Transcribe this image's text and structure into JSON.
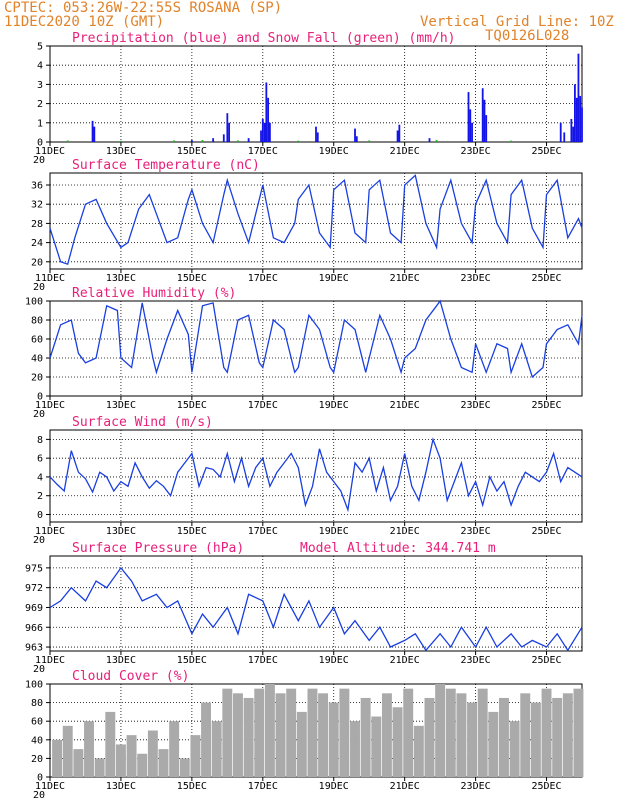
{
  "header": {
    "line1": "CPTEC:  053:26W-22:55S  ROSANA (SP)",
    "line2_left": "11DEC2020 10Z (GMT)",
    "line2_right": "Vertical Grid Line: 10Z",
    "line3_right": "TQ0126L028"
  },
  "x_dates": [
    "11DEC",
    "13DEC",
    "15DEC",
    "17DEC",
    "19DEC",
    "21DEC",
    "23DEC",
    "25DEC"
  ],
  "x_date_days": [
    0,
    2,
    4,
    6,
    8,
    10,
    12,
    14
  ],
  "x_range_days": [
    0,
    15
  ],
  "x_fragment": "20",
  "colors": {
    "precip": "#1414e6",
    "snow": "#18b418",
    "line": "#1a3fe0",
    "title": "#e8207a",
    "header": "#e0832a",
    "cloud": "#aaaaaa"
  },
  "chart_data": [
    {
      "type": "bar",
      "title": "Precipitation (blue) and Snow Fall (green) (mm/h)",
      "ylim": [
        0,
        5
      ],
      "yticks": [
        "0",
        "1",
        "2",
        "3",
        "4",
        "5"
      ],
      "series": [
        {
          "name": "Precipitation",
          "points": [
            [
              1.2,
              1.1
            ],
            [
              1.25,
              0.8
            ],
            [
              4.0,
              0.1
            ],
            [
              4.6,
              0.2
            ],
            [
              4.9,
              0.4
            ],
            [
              5.0,
              1.5
            ],
            [
              5.05,
              1.0
            ],
            [
              5.6,
              0.2
            ],
            [
              5.95,
              0.6
            ],
            [
              6.0,
              1.2
            ],
            [
              6.05,
              1.0
            ],
            [
              6.1,
              3.1
            ],
            [
              6.15,
              2.3
            ],
            [
              6.2,
              1.0
            ],
            [
              7.5,
              0.8
            ],
            [
              7.55,
              0.5
            ],
            [
              8.6,
              0.7
            ],
            [
              8.65,
              0.3
            ],
            [
              9.8,
              0.6
            ],
            [
              9.85,
              0.9
            ],
            [
              10.7,
              0.2
            ],
            [
              11.8,
              2.6
            ],
            [
              11.85,
              1.7
            ],
            [
              11.9,
              1.0
            ],
            [
              12.2,
              2.8
            ],
            [
              12.25,
              2.2
            ],
            [
              12.3,
              1.4
            ],
            [
              14.4,
              1.0
            ],
            [
              14.5,
              0.5
            ],
            [
              14.7,
              1.2
            ],
            [
              14.75,
              0.8
            ],
            [
              14.8,
              3.0
            ],
            [
              14.85,
              2.3
            ],
            [
              14.9,
              4.6
            ],
            [
              14.95,
              2.4
            ],
            [
              15.0,
              1.8
            ]
          ]
        },
        {
          "name": "Snow Fall",
          "points": [
            [
              0.5,
              0.08
            ],
            [
              2.0,
              0.06
            ],
            [
              3.5,
              0.08
            ],
            [
              4.3,
              0.1
            ],
            [
              5.3,
              0.08
            ],
            [
              7.0,
              0.07
            ],
            [
              9.0,
              0.08
            ],
            [
              10.9,
              0.1
            ],
            [
              13.0,
              0.07
            ]
          ]
        }
      ]
    },
    {
      "type": "line",
      "title": "Surface Temperature (nC)",
      "ylim": [
        18.5,
        38.5
      ],
      "yticks": [
        "20",
        "24",
        "28",
        "32",
        "36"
      ],
      "ytick_values": [
        20,
        24,
        28,
        32,
        36
      ],
      "x": [
        0,
        0.3,
        0.5,
        0.7,
        1.0,
        1.3,
        1.6,
        2.0,
        2.2,
        2.5,
        2.8,
        3.0,
        3.3,
        3.6,
        3.9,
        4.0,
        4.3,
        4.6,
        4.9,
        5.0,
        5.3,
        5.6,
        5.9,
        6.0,
        6.3,
        6.6,
        6.9,
        7.0,
        7.3,
        7.6,
        7.9,
        8.0,
        8.3,
        8.6,
        8.9,
        9.0,
        9.3,
        9.6,
        9.9,
        10.0,
        10.3,
        10.6,
        10.9,
        11.0,
        11.3,
        11.6,
        11.9,
        12.0,
        12.3,
        12.6,
        12.9,
        13.0,
        13.3,
        13.6,
        13.9,
        14.0,
        14.3,
        14.6,
        14.9,
        15.0
      ],
      "values": [
        27,
        20,
        19.5,
        25,
        32,
        33,
        28,
        23,
        24,
        31,
        34,
        30,
        24,
        25,
        33,
        35,
        28,
        24,
        34,
        37,
        30,
        24,
        33,
        36,
        25,
        24,
        28,
        33,
        36,
        26,
        23,
        35,
        37,
        26,
        24,
        35,
        37,
        26,
        24,
        36,
        38,
        28,
        23,
        31,
        37,
        28,
        24,
        32,
        37,
        28,
        24,
        34,
        37,
        27,
        23,
        34,
        37,
        25,
        29,
        27
      ]
    },
    {
      "type": "line",
      "title": "Relative Humidity (%)",
      "ylim": [
        0,
        100
      ],
      "yticks": [
        "0",
        "20",
        "40",
        "60",
        "80",
        "100"
      ],
      "ytick_values": [
        0,
        20,
        40,
        60,
        80,
        100
      ],
      "x": [
        0,
        0.3,
        0.6,
        0.8,
        1.0,
        1.3,
        1.6,
        1.9,
        2.0,
        2.3,
        2.6,
        2.9,
        3.0,
        3.3,
        3.6,
        3.9,
        4.0,
        4.3,
        4.6,
        4.9,
        5.0,
        5.3,
        5.6,
        5.9,
        6.0,
        6.3,
        6.6,
        6.9,
        7.0,
        7.3,
        7.6,
        7.9,
        8.0,
        8.3,
        8.6,
        8.9,
        9.0,
        9.3,
        9.6,
        9.9,
        10.0,
        10.3,
        10.6,
        10.9,
        11.0,
        11.3,
        11.6,
        11.9,
        12.0,
        12.3,
        12.6,
        12.9,
        13.0,
        13.3,
        13.6,
        13.9,
        14.0,
        14.3,
        14.6,
        14.9,
        15.0
      ],
      "values": [
        40,
        75,
        80,
        45,
        35,
        40,
        95,
        90,
        40,
        30,
        98,
        40,
        25,
        60,
        90,
        65,
        25,
        95,
        98,
        30,
        25,
        80,
        85,
        35,
        30,
        80,
        70,
        25,
        30,
        85,
        70,
        30,
        25,
        80,
        70,
        25,
        40,
        85,
        60,
        25,
        40,
        50,
        80,
        95,
        100,
        60,
        30,
        25,
        55,
        25,
        55,
        50,
        25,
        55,
        20,
        30,
        55,
        70,
        75,
        55,
        85
      ]
    },
    {
      "type": "line",
      "title": "Surface Wind (m/s)",
      "ylim": [
        -0.8,
        9
      ],
      "yticks": [
        "0",
        "2",
        "4",
        "6",
        "8"
      ],
      "ytick_values": [
        0,
        2,
        4,
        6,
        8
      ],
      "x": [
        0,
        0.2,
        0.4,
        0.6,
        0.8,
        1.0,
        1.2,
        1.4,
        1.6,
        1.8,
        2.0,
        2.2,
        2.4,
        2.6,
        2.8,
        3.0,
        3.2,
        3.4,
        3.6,
        3.8,
        4.0,
        4.2,
        4.4,
        4.6,
        4.8,
        5.0,
        5.2,
        5.4,
        5.6,
        5.8,
        6.0,
        6.2,
        6.4,
        6.6,
        6.8,
        7.0,
        7.2,
        7.4,
        7.6,
        7.8,
        8.0,
        8.2,
        8.4,
        8.6,
        8.8,
        9.0,
        9.2,
        9.4,
        9.6,
        9.8,
        10.0,
        10.2,
        10.4,
        10.6,
        10.8,
        11.0,
        11.2,
        11.4,
        11.6,
        11.8,
        12.0,
        12.2,
        12.4,
        12.6,
        12.8,
        13.0,
        13.2,
        13.4,
        13.6,
        13.8,
        14.0,
        14.2,
        14.4,
        14.6,
        14.8,
        15.0
      ],
      "values": [
        4,
        3.2,
        2.5,
        6.8,
        4.5,
        3.8,
        2.4,
        4.5,
        4.0,
        2.5,
        3.5,
        3.0,
        5.5,
        4.0,
        2.8,
        3.6,
        3.0,
        2.0,
        4.5,
        5.5,
        6.5,
        3.0,
        5.0,
        4.8,
        4.0,
        6.5,
        3.5,
        6.0,
        3.0,
        5.0,
        6.0,
        3.0,
        4.5,
        5.5,
        6.5,
        5.0,
        1.0,
        3.0,
        7.0,
        4.5,
        3.5,
        2.5,
        0.5,
        5.5,
        4.5,
        6.0,
        2.5,
        5.0,
        1.5,
        3.0,
        6.5,
        3.0,
        1.5,
        4.5,
        8.0,
        6.0,
        1.5,
        3.5,
        5.5,
        2.0,
        3.5,
        1.0,
        4.0,
        2.5,
        3.5,
        1.0,
        3.0,
        4.5,
        4.0,
        3.5,
        4.5,
        6.5,
        3.5,
        5.0,
        4.5,
        4.0
      ]
    },
    {
      "type": "line",
      "title": "Surface Pressure (hPa)",
      "annotation": "Model Altitude: 344.741 m",
      "ylim": [
        962.4,
        976.8
      ],
      "yticks": [
        "963",
        "966",
        "969",
        "972",
        "975"
      ],
      "ytick_values": [
        963,
        966,
        969,
        972,
        975
      ],
      "x": [
        0,
        0.3,
        0.6,
        1.0,
        1.3,
        1.6,
        2.0,
        2.3,
        2.6,
        3.0,
        3.3,
        3.6,
        4.0,
        4.3,
        4.6,
        5.0,
        5.3,
        5.6,
        6.0,
        6.3,
        6.6,
        7.0,
        7.3,
        7.6,
        8.0,
        8.3,
        8.6,
        9.0,
        9.3,
        9.6,
        10.0,
        10.3,
        10.6,
        11.0,
        11.3,
        11.6,
        12.0,
        12.3,
        12.6,
        13.0,
        13.3,
        13.6,
        14.0,
        14.3,
        14.6,
        15.0
      ],
      "values": [
        969,
        970,
        972,
        970,
        973,
        972,
        975,
        973,
        970,
        971,
        969,
        970,
        965,
        968,
        966,
        969,
        965,
        971,
        970,
        966,
        971,
        967,
        970,
        966,
        969,
        965,
        967,
        964,
        966,
        963,
        964,
        965,
        962.5,
        965,
        963,
        966,
        963,
        966,
        963,
        965,
        963,
        964,
        963,
        965,
        962.5,
        966
      ]
    },
    {
      "type": "bar",
      "title": "Cloud Cover (%)",
      "ylim": [
        0,
        100
      ],
      "yticks": [
        "0",
        "20",
        "40",
        "60",
        "80",
        "100"
      ],
      "ytick_values": [
        0,
        20,
        40,
        60,
        80,
        100
      ],
      "x": [
        0.2,
        0.5,
        0.8,
        1.1,
        1.4,
        1.7,
        2.0,
        2.3,
        2.6,
        2.9,
        3.2,
        3.5,
        3.8,
        4.1,
        4.4,
        4.7,
        5.0,
        5.3,
        5.6,
        5.9,
        6.2,
        6.5,
        6.8,
        7.1,
        7.4,
        7.7,
        8.0,
        8.3,
        8.6,
        8.9,
        9.2,
        9.5,
        9.8,
        10.1,
        10.4,
        10.7,
        11.0,
        11.3,
        11.6,
        11.9,
        12.2,
        12.5,
        12.8,
        13.1,
        13.4,
        13.7,
        14.0,
        14.3,
        14.6,
        14.9
      ],
      "values": [
        40,
        55,
        30,
        60,
        20,
        70,
        35,
        45,
        25,
        50,
        30,
        60,
        20,
        45,
        80,
        60,
        95,
        90,
        85,
        95,
        100,
        90,
        95,
        70,
        95,
        90,
        80,
        95,
        60,
        85,
        65,
        90,
        75,
        95,
        55,
        85,
        100,
        95,
        90,
        80,
        95,
        70,
        85,
        60,
        90,
        80,
        95,
        85,
        90,
        95
      ]
    }
  ]
}
